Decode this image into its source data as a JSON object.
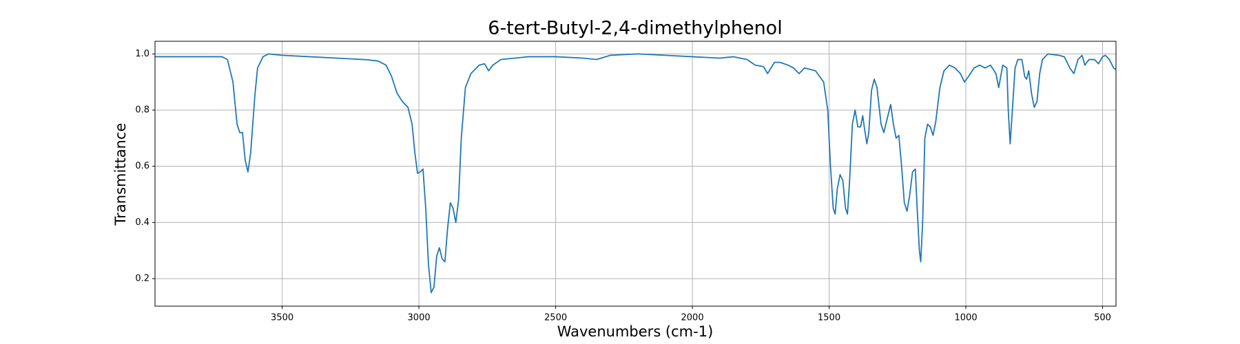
{
  "chart_data": {
    "type": "line",
    "title": "6-tert-Butyl-2,4-dimethylphenol",
    "x_label": "Wavenumbers (cm-1)",
    "y_label": "Transmittance",
    "xlim": [
      3965,
      451
    ],
    "ylim": [
      0.102,
      1.045
    ],
    "xticks": [
      3500,
      3000,
      2500,
      2000,
      1500,
      1000,
      500
    ],
    "yticks": [
      0.2,
      0.4,
      0.6,
      0.8,
      {
        "value": 1,
        "label": "1.0"
      }
    ],
    "grid": true,
    "x": [
      3965,
      3900,
      3800,
      3720,
      3700,
      3680,
      3665,
      3655,
      3645,
      3635,
      3625,
      3615,
      3600,
      3590,
      3570,
      3550,
      3500,
      3400,
      3300,
      3200,
      3150,
      3120,
      3100,
      3080,
      3060,
      3040,
      3025,
      3015,
      3005,
      2995,
      2985,
      2975,
      2965,
      2955,
      2945,
      2935,
      2925,
      2915,
      2905,
      2895,
      2885,
      2875,
      2865,
      2855,
      2845,
      2830,
      2810,
      2780,
      2760,
      2745,
      2730,
      2700,
      2600,
      2500,
      2400,
      2350,
      2300,
      2200,
      2100,
      2000,
      1900,
      1850,
      1800,
      1770,
      1740,
      1725,
      1700,
      1680,
      1650,
      1630,
      1610,
      1590,
      1550,
      1520,
      1505,
      1495,
      1485,
      1478,
      1470,
      1460,
      1450,
      1440,
      1433,
      1425,
      1415,
      1405,
      1395,
      1385,
      1377,
      1370,
      1362,
      1355,
      1345,
      1335,
      1325,
      1310,
      1300,
      1290,
      1275,
      1265,
      1255,
      1245,
      1235,
      1225,
      1215,
      1205,
      1195,
      1185,
      1178,
      1170,
      1165,
      1158,
      1150,
      1140,
      1130,
      1120,
      1110,
      1095,
      1080,
      1060,
      1040,
      1020,
      1005,
      990,
      970,
      950,
      930,
      910,
      890,
      880,
      865,
      850,
      845,
      838,
      830,
      820,
      810,
      795,
      785,
      778,
      770,
      760,
      750,
      740,
      730,
      720,
      700,
      660,
      640,
      620,
      605,
      590,
      575,
      565,
      550,
      530,
      515,
      500,
      490,
      475,
      460,
      451
    ],
    "series": [
      {
        "name": "Transmittance",
        "color": "#1f77b4",
        "values": [
          0.99,
          0.99,
          0.99,
          0.99,
          0.98,
          0.9,
          0.75,
          0.72,
          0.72,
          0.62,
          0.58,
          0.65,
          0.85,
          0.95,
          0.99,
          1.0,
          0.995,
          0.99,
          0.985,
          0.98,
          0.975,
          0.96,
          0.92,
          0.86,
          0.83,
          0.81,
          0.75,
          0.65,
          0.575,
          0.58,
          0.59,
          0.45,
          0.25,
          0.15,
          0.17,
          0.28,
          0.31,
          0.27,
          0.26,
          0.38,
          0.47,
          0.45,
          0.4,
          0.48,
          0.7,
          0.88,
          0.93,
          0.96,
          0.965,
          0.94,
          0.96,
          0.98,
          0.99,
          0.99,
          0.985,
          0.98,
          0.995,
          1.0,
          0.995,
          0.99,
          0.985,
          0.99,
          0.98,
          0.96,
          0.955,
          0.93,
          0.97,
          0.97,
          0.96,
          0.95,
          0.93,
          0.95,
          0.94,
          0.9,
          0.8,
          0.6,
          0.45,
          0.43,
          0.52,
          0.57,
          0.55,
          0.45,
          0.43,
          0.55,
          0.75,
          0.8,
          0.74,
          0.74,
          0.78,
          0.73,
          0.68,
          0.72,
          0.87,
          0.91,
          0.88,
          0.75,
          0.72,
          0.76,
          0.82,
          0.75,
          0.7,
          0.71,
          0.6,
          0.47,
          0.44,
          0.5,
          0.58,
          0.59,
          0.45,
          0.3,
          0.26,
          0.4,
          0.7,
          0.75,
          0.74,
          0.71,
          0.76,
          0.88,
          0.94,
          0.96,
          0.95,
          0.93,
          0.9,
          0.92,
          0.95,
          0.96,
          0.95,
          0.96,
          0.93,
          0.88,
          0.96,
          0.95,
          0.8,
          0.68,
          0.8,
          0.95,
          0.98,
          0.98,
          0.92,
          0.91,
          0.94,
          0.86,
          0.81,
          0.83,
          0.93,
          0.98,
          1.0,
          0.995,
          0.99,
          0.95,
          0.93,
          0.98,
          0.995,
          0.96,
          0.98,
          0.98,
          0.965,
          0.99,
          0.995,
          0.98,
          0.95,
          0.945
        ]
      }
    ]
  }
}
